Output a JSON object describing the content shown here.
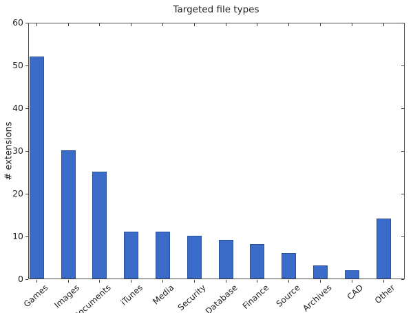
{
  "chart_data": {
    "type": "bar",
    "title": "Targeted file types",
    "xlabel": "",
    "ylabel": "# extensions",
    "categories": [
      "Games",
      "Images",
      "Documents",
      "iTunes",
      "Media",
      "Security",
      "Database",
      "Finance",
      "Source",
      "Archives",
      "CAD",
      "Other"
    ],
    "values": [
      52,
      30,
      25,
      11,
      11,
      10,
      9,
      8,
      6,
      3,
      2,
      14
    ],
    "ylim": [
      0,
      60
    ],
    "yticks": [
      0,
      10,
      20,
      30,
      40,
      50,
      60
    ],
    "grid": false,
    "legend_position": "none",
    "bar_color": "#3b6bc9",
    "bar_edge_color": "#2b509f",
    "spine_color": "#4a4a4a",
    "tick_color": "#3a3a3a",
    "text_color": "#1f1f1f",
    "background_color": "#ffffff"
  }
}
